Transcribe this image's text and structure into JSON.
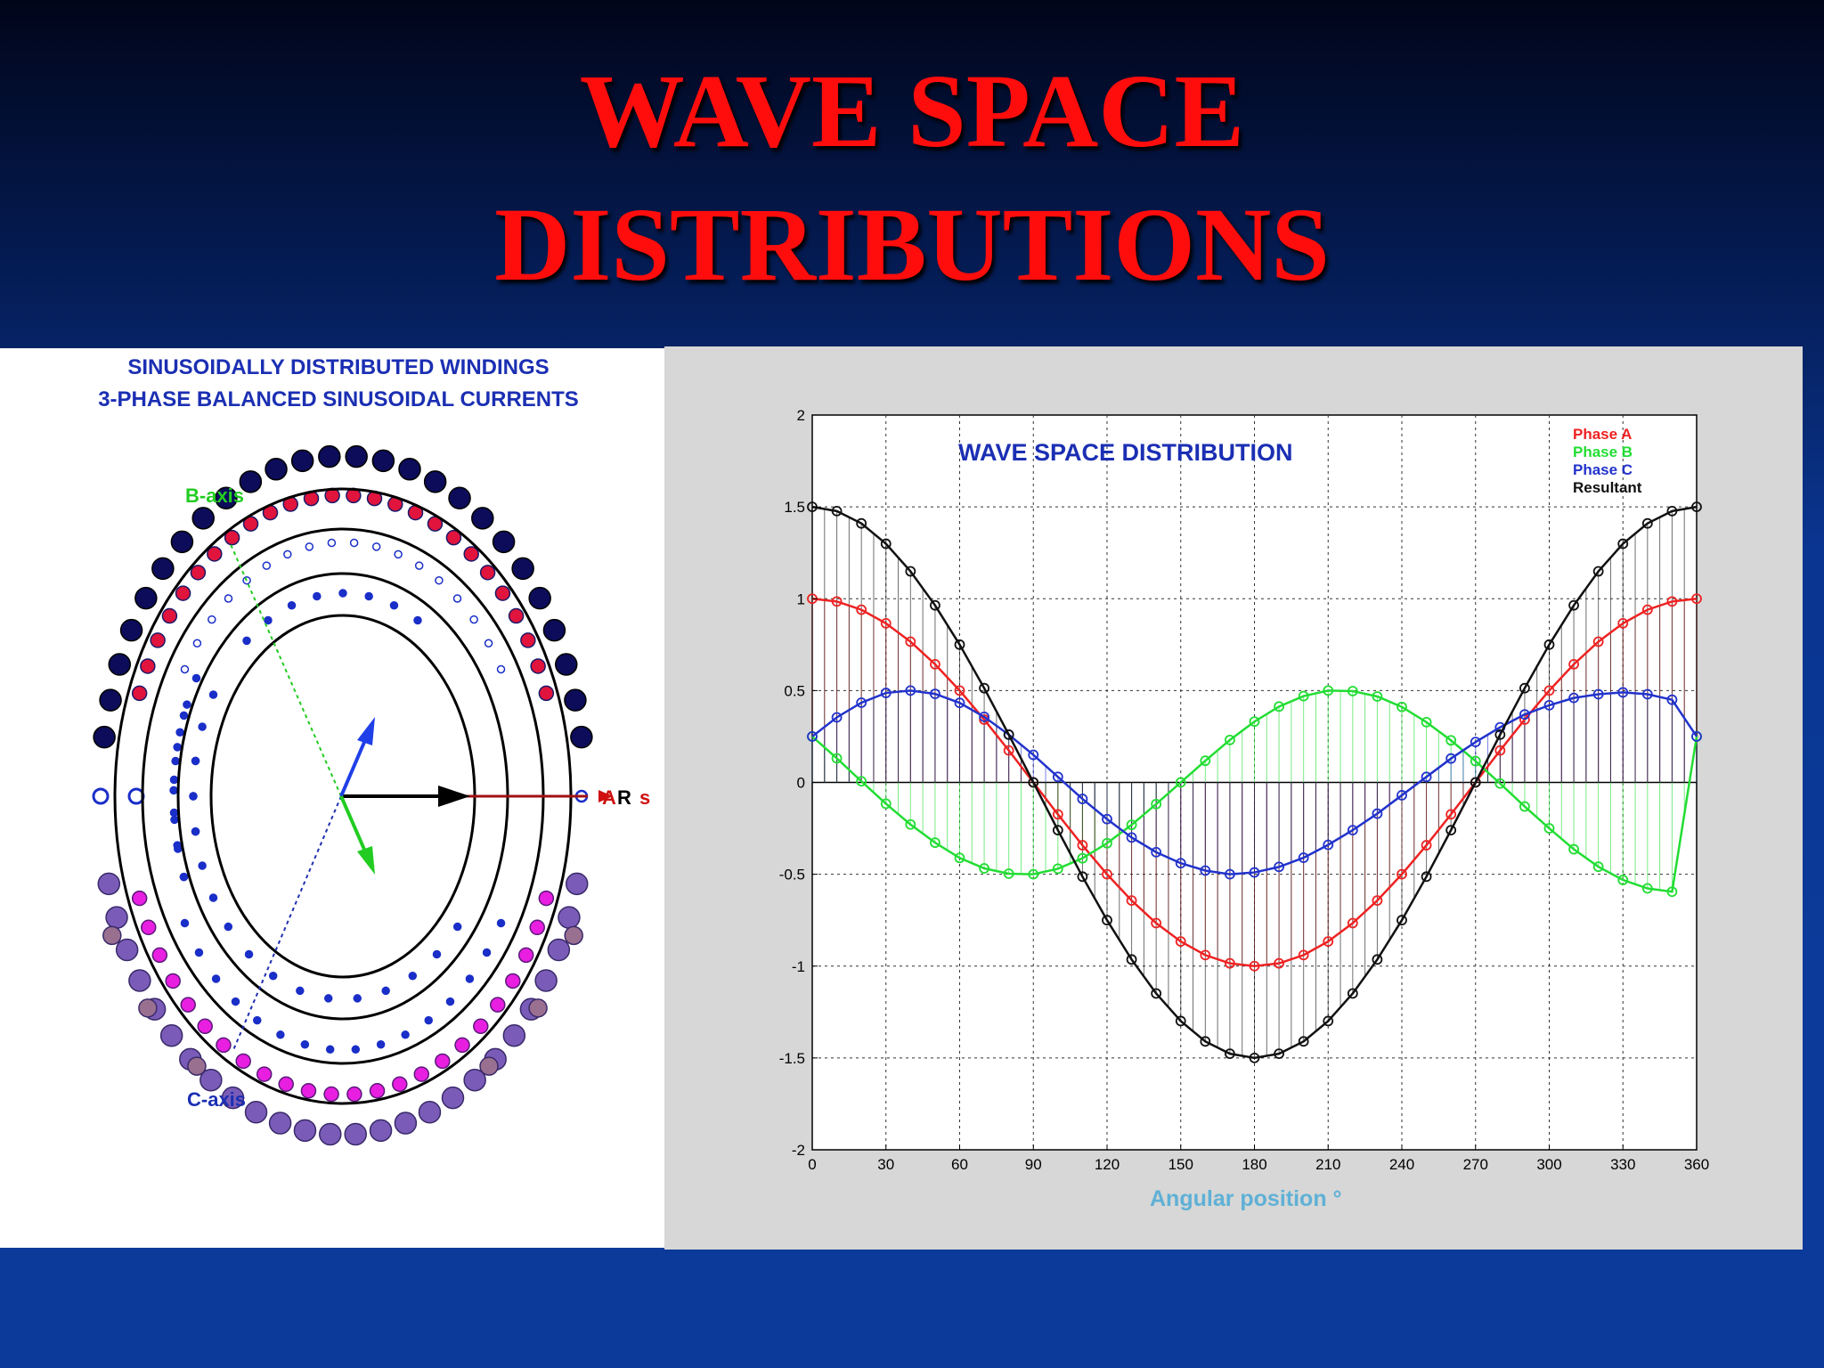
{
  "slide": {
    "title_line1": "WAVE SPACE",
    "title_line2": "DISTRIBUTIONS"
  },
  "left_diagram": {
    "title_line1": "SINUSOIDALLY DISTRIBUTED WINDINGS",
    "title_line2": "3-PHASE BALANCED SINUSOIDAL CURRENTS",
    "b_axis_label": "B-axis",
    "c_axis_label": "C-axis",
    "a_axis_label": "A",
    "r_label": "R",
    "s_label": "s",
    "colors": {
      "outer_dark": "#0c0c5a",
      "red_ring": "#e0143c",
      "blue_ring": "#1a2ec8",
      "magenta": "#e81ee0",
      "purple": "#7a5cb8",
      "mauve": "#9a7090",
      "green_arrow": "#22cc22",
      "blue_arrow": "#1f3fe8"
    }
  },
  "chart_data": {
    "type": "line",
    "title": "WAVE SPACE DISTRIBUTION",
    "xlabel": "Angular position °",
    "ylabel": "",
    "xlim": [
      0,
      360
    ],
    "ylim": [
      -2,
      2
    ],
    "x_ticks": [
      0,
      30,
      60,
      90,
      120,
      150,
      180,
      210,
      240,
      270,
      300,
      330,
      360
    ],
    "y_ticks": [
      2,
      1.5,
      1,
      0.5,
      0,
      -0.5,
      -1,
      -1.5,
      -2
    ],
    "y_tick_labels": [
      "2",
      "1.5",
      "1",
      "0.5",
      "0",
      "-0.5",
      "-1",
      "-1.5",
      "-2"
    ],
    "grid": true,
    "legend_position": "top-right",
    "x": [
      0,
      10,
      20,
      30,
      40,
      50,
      60,
      70,
      80,
      90,
      100,
      110,
      120,
      130,
      140,
      150,
      160,
      170,
      180,
      190,
      200,
      210,
      220,
      230,
      240,
      250,
      260,
      270,
      280,
      290,
      300,
      310,
      320,
      330,
      340,
      350,
      360
    ],
    "series": [
      {
        "name": "Phase A",
        "color": "#ee2222",
        "values": [
          1.0,
          0.985,
          0.94,
          0.866,
          0.766,
          0.643,
          0.5,
          0.342,
          0.174,
          0.0,
          -0.174,
          -0.342,
          -0.5,
          -0.643,
          -0.766,
          -0.866,
          -0.94,
          -0.985,
          -1.0,
          -0.985,
          -0.94,
          -0.866,
          -0.766,
          -0.643,
          -0.5,
          -0.342,
          -0.174,
          0.0,
          0.174,
          0.342,
          0.5,
          0.643,
          0.766,
          0.866,
          0.94,
          0.985,
          1.0
        ]
      },
      {
        "name": "Phase B",
        "color": "#22dd33",
        "values": [
          0.25,
          0.131,
          0.006,
          -0.116,
          -0.229,
          -0.328,
          -0.411,
          -0.468,
          -0.497,
          -0.5,
          -0.47,
          -0.413,
          -0.331,
          -0.231,
          -0.118,
          0.0,
          0.118,
          0.231,
          0.331,
          0.413,
          0.47,
          0.5,
          0.497,
          0.468,
          0.411,
          0.328,
          0.229,
          0.116,
          -0.006,
          -0.131,
          -0.25,
          -0.364,
          -0.459,
          -0.531,
          -0.577,
          -0.595,
          0.25
        ]
      },
      {
        "name": "Phase C",
        "color": "#2233cc",
        "values": [
          0.25,
          0.354,
          0.434,
          0.487,
          0.5,
          0.482,
          0.433,
          0.357,
          0.26,
          0.15,
          0.03,
          -0.09,
          -0.2,
          -0.3,
          -0.38,
          -0.44,
          -0.48,
          -0.5,
          -0.49,
          -0.46,
          -0.41,
          -0.34,
          -0.26,
          -0.17,
          -0.07,
          0.03,
          0.13,
          0.22,
          0.3,
          0.37,
          0.42,
          0.46,
          0.48,
          0.49,
          0.48,
          0.45,
          0.25
        ]
      },
      {
        "name": "Resultant",
        "color": "#111111",
        "values": [
          1.5,
          1.477,
          1.41,
          1.299,
          1.149,
          0.964,
          0.75,
          0.513,
          0.26,
          0.0,
          -0.26,
          -0.513,
          -0.75,
          -0.964,
          -1.149,
          -1.299,
          -1.41,
          -1.477,
          -1.5,
          -1.477,
          -1.41,
          -1.299,
          -1.149,
          -0.964,
          -0.75,
          -0.513,
          -0.26,
          0.0,
          0.26,
          0.513,
          0.75,
          0.964,
          1.149,
          1.299,
          1.41,
          1.477,
          1.5
        ]
      }
    ],
    "legend_labels": [
      "Phase A",
      "Phase B",
      "Phase C",
      "Resultant"
    ]
  }
}
